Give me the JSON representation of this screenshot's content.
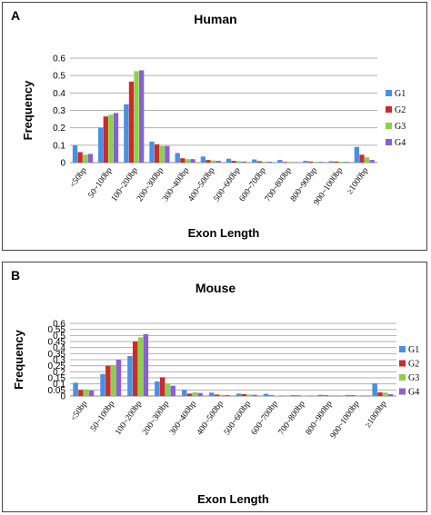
{
  "colors": {
    "G1": "#4a90e2",
    "G2": "#cc2b2b",
    "G3": "#8bd14a",
    "G4": "#8a5fd6",
    "grid": "#b0b0b0"
  },
  "chart_data": [
    {
      "panel": "A",
      "type": "bar",
      "title": "Human",
      "xlabel": "Exon Length",
      "ylabel": "Frequency",
      "ylim": [
        0,
        0.6
      ],
      "yticks": [
        "0",
        "0.1",
        "0.2",
        "0.3",
        "0.4",
        "0.5",
        "0.6"
      ],
      "grid": true,
      "legend_position": "right",
      "categories": [
        "<50bp",
        "50~100bp",
        "100~200bp",
        "200~300bp",
        "300~400bp",
        "400~500bp",
        "500~600bp",
        "600~700bp",
        "700~800bp",
        "800~900bp",
        "900~1000bp",
        "≥1000bp"
      ],
      "series": [
        {
          "name": "G1",
          "values": [
            0.1,
            0.2,
            0.335,
            0.12,
            0.055,
            0.035,
            0.022,
            0.018,
            0.015,
            0.01,
            0.008,
            0.09
          ]
        },
        {
          "name": "G2",
          "values": [
            0.06,
            0.265,
            0.465,
            0.105,
            0.025,
            0.015,
            0.01,
            0.008,
            0.004,
            0.006,
            0.006,
            0.045
          ]
        },
        {
          "name": "G3",
          "values": [
            0.045,
            0.275,
            0.525,
            0.095,
            0.02,
            0.012,
            0.008,
            0.005,
            0.004,
            0.004,
            0.005,
            0.03
          ]
        },
        {
          "name": "G4",
          "values": [
            0.05,
            0.285,
            0.53,
            0.095,
            0.02,
            0.01,
            0.006,
            0.005,
            0.003,
            0.004,
            0.004,
            0.015
          ]
        }
      ]
    },
    {
      "panel": "B",
      "type": "bar",
      "title": "Mouse",
      "xlabel": "Exon Length",
      "ylabel": "Frequency",
      "ylim": [
        0,
        0.6
      ],
      "yticks": [
        "0",
        "0.05",
        "0.1",
        "0.15",
        "0.2",
        "0.25",
        "0.3",
        "0.35",
        "0.4",
        "0.45",
        "0.5",
        "0.55",
        "0.6"
      ],
      "grid": true,
      "legend_position": "right",
      "categories": [
        "<50bp",
        "50~100bp",
        "100~200bp",
        "200~300bp",
        "300~400bp",
        "400~500bp",
        "500~600bp",
        "600~700bp",
        "700~800bp",
        "800~900bp",
        "900~1000bp",
        "≥1000bp"
      ],
      "series": [
        {
          "name": "G1",
          "values": [
            0.11,
            0.18,
            0.33,
            0.12,
            0.05,
            0.028,
            0.02,
            0.018,
            0.008,
            0.01,
            0.008,
            0.105
          ]
        },
        {
          "name": "G2",
          "values": [
            0.05,
            0.25,
            0.45,
            0.155,
            0.02,
            0.012,
            0.015,
            0.006,
            0.005,
            0.006,
            0.006,
            0.03
          ]
        },
        {
          "name": "G3",
          "values": [
            0.055,
            0.255,
            0.485,
            0.1,
            0.03,
            0.01,
            0.012,
            0.004,
            0.004,
            0.006,
            0.005,
            0.028
          ]
        },
        {
          "name": "G4",
          "values": [
            0.045,
            0.3,
            0.51,
            0.085,
            0.025,
            0.008,
            0.01,
            0.004,
            0.003,
            0.004,
            0.004,
            0.015
          ]
        }
      ]
    }
  ]
}
